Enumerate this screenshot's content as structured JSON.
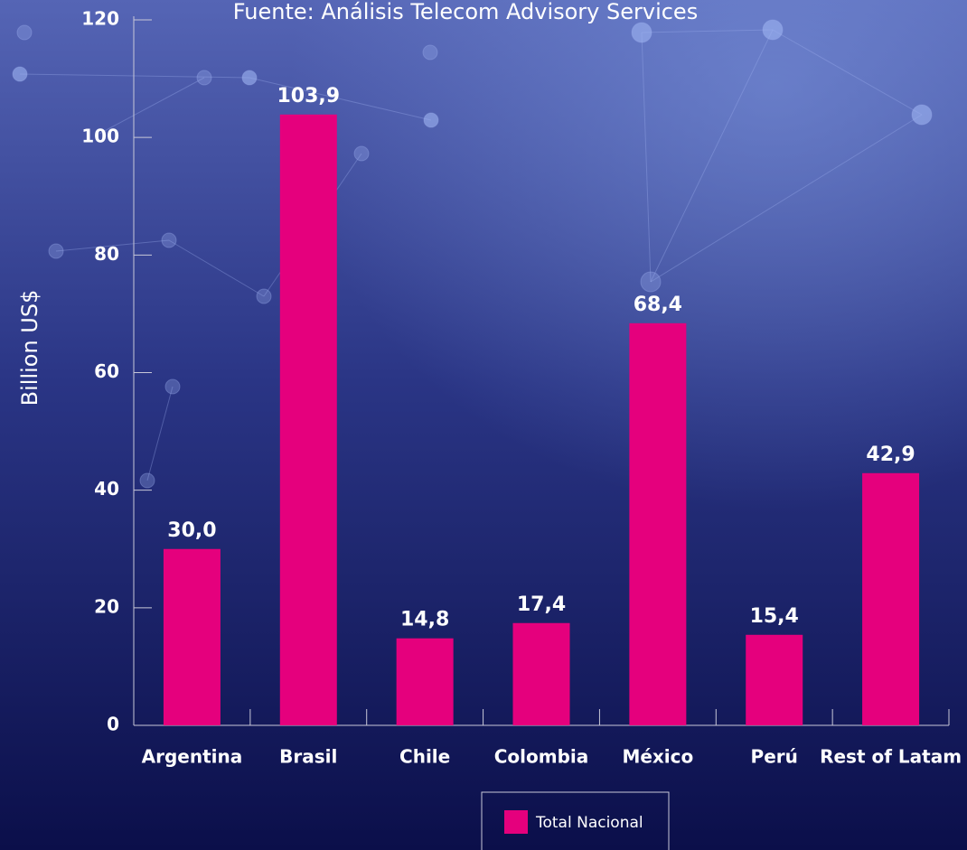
{
  "chart_data": {
    "type": "bar",
    "title": "Fuente: Análisis Telecom Advisory Services",
    "y_label": "Billion US$",
    "categories": [
      "Argentina",
      "Brasil",
      "Chile",
      "Colombia",
      "México",
      "Perú",
      "Rest of Latam"
    ],
    "series": [
      {
        "name": "Total Nacional",
        "color": "#e5007d",
        "values": [
          30.0,
          103.9,
          14.8,
          17.4,
          68.4,
          15.4,
          42.9
        ],
        "value_labels": [
          "30,0",
          "103,9",
          "14,8",
          "17,4",
          "68,4",
          "15,4",
          "42,9"
        ]
      }
    ],
    "ylim": [
      0,
      120
    ],
    "yticks": [
      0,
      20,
      40,
      60,
      80,
      100,
      120
    ],
    "grid": false
  }
}
